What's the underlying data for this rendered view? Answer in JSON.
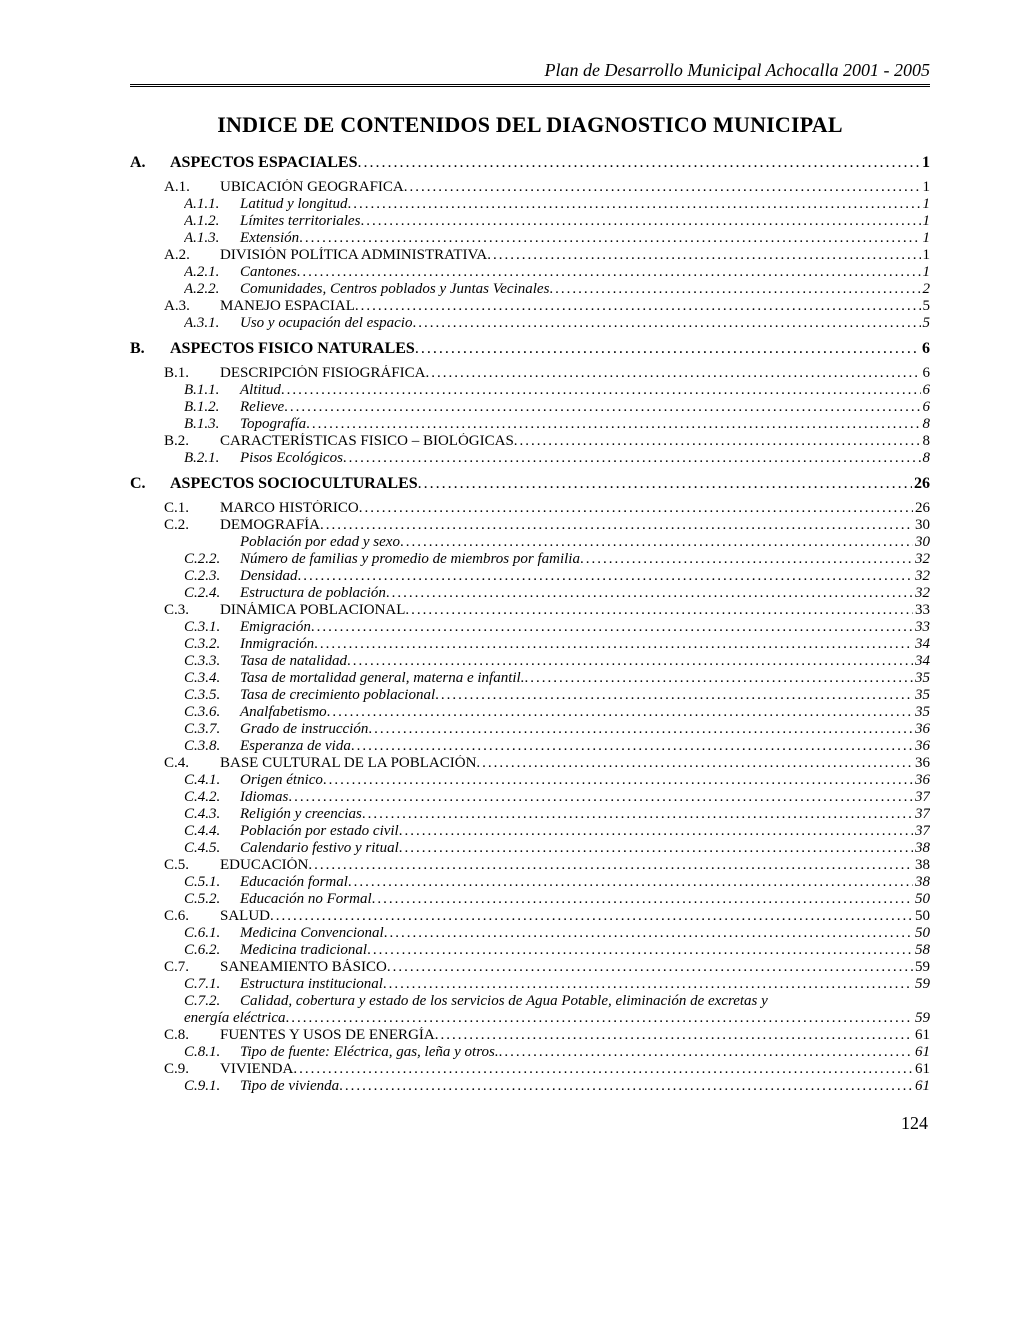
{
  "header": {
    "title": "Plan de Desarrollo Municipal Achocalla 2001 - 2005"
  },
  "mainTitle": "INDICE DE CONTENIDOS DEL DIAGNOSTICO MUNICIPAL",
  "pageNumber": "124",
  "sections": [
    {
      "letter": "A.",
      "title": "ASPECTOS ESPACIALES",
      "page": "1",
      "children": [
        {
          "type": "sub1",
          "num": "A.1.",
          "label": "UBICACIÓN GEOGRAFICA",
          "page": "1"
        },
        {
          "type": "sub2",
          "num": "A.1.1.",
          "label": "Latitud y longitud",
          "page": "1"
        },
        {
          "type": "sub2",
          "num": "A.1.2.",
          "label": "Límites territoriales",
          "page": "1"
        },
        {
          "type": "sub2",
          "num": "A.1.3.",
          "label": "Extensión",
          "page": "1"
        },
        {
          "type": "sub1",
          "num": "A.2.",
          "label": "DIVISIÓN POLÍTICA ADMINISTRATIVA",
          "page": "1"
        },
        {
          "type": "sub2",
          "num": "A.2.1.",
          "label": "Cantones",
          "page": "1"
        },
        {
          "type": "sub2",
          "num": "A.2.2.",
          "label": "Comunidades, Centros poblados y Juntas Vecinales",
          "page": "2"
        },
        {
          "type": "sub1",
          "num": "A.3.",
          "label": "MANEJO ESPACIAL",
          "page": "5"
        },
        {
          "type": "sub2",
          "num": "A.3.1.",
          "label": "Uso y ocupación del espacio",
          "page": "5"
        }
      ]
    },
    {
      "letter": "B.",
      "title": "ASPECTOS FISICO NATURALES",
      "page": "6",
      "children": [
        {
          "type": "sub1",
          "num": "B.1.",
          "label": "DESCRIPCIÓN FISIOGRÁFICA",
          "page": "6"
        },
        {
          "type": "sub2",
          "num": "B.1.1.",
          "label": "Altitud",
          "page": "6"
        },
        {
          "type": "sub2",
          "num": "B.1.2.",
          "label": "Relieve",
          "page": "6"
        },
        {
          "type": "sub2",
          "num": "B.1.3.",
          "label": "Topografía",
          "page": "8"
        },
        {
          "type": "sub1",
          "num": "B.2.",
          "label": "CARACTERÍSTICAS FISICO – BIOLÓGICAS",
          "page": "8"
        },
        {
          "type": "sub2",
          "num": "B.2.1.",
          "label": "Pisos Ecológicos",
          "page": "8"
        }
      ]
    },
    {
      "letter": "C.",
      "title": "ASPECTOS SOCIOCULTURALES",
      "page": "26",
      "children": [
        {
          "type": "sub1",
          "num": "C.1.",
          "label": "MARCO HISTÓRICO",
          "page": "26"
        },
        {
          "type": "sub1",
          "num": "C.2.",
          "label": "DEMOGRAFÍA",
          "page": "30"
        },
        {
          "type": "sub2",
          "num": "",
          "label": "Población por edad y sexo",
          "page": "30"
        },
        {
          "type": "sub2",
          "num": "C.2.2.",
          "label": "Número de familias y promedio de miembros por familia",
          "page": "32"
        },
        {
          "type": "sub2",
          "num": "C.2.3.",
          "label": "Densidad",
          "page": "32"
        },
        {
          "type": "sub2",
          "num": "C.2.4.",
          "label": "Estructura de población",
          "page": "32"
        },
        {
          "type": "sub1",
          "num": "C.3.",
          "label": "DINÁMICA POBLACIONAL",
          "page": "33"
        },
        {
          "type": "sub2",
          "num": "C.3.1.",
          "label": "Emigración",
          "page": "33"
        },
        {
          "type": "sub2",
          "num": "C.3.2.",
          "label": "Inmigración",
          "page": "34"
        },
        {
          "type": "sub2",
          "num": "C.3.3.",
          "label": "Tasa de natalidad",
          "page": "34"
        },
        {
          "type": "sub2",
          "num": "C.3.4.",
          "label": "Tasa de mortalidad general, materna e infantil.",
          "page": "35"
        },
        {
          "type": "sub2",
          "num": "C.3.5.",
          "label": "Tasa de crecimiento poblacional",
          "page": "35"
        },
        {
          "type": "sub2",
          "num": "C.3.6.",
          "label": "Analfabetismo",
          "page": "35"
        },
        {
          "type": "sub2",
          "num": "C.3.7.",
          "label": "Grado de instrucción",
          "page": "36"
        },
        {
          "type": "sub2",
          "num": "C.3.8.",
          "label": "Esperanza  de vida",
          "page": "36"
        },
        {
          "type": "sub1",
          "num": "C.4.",
          "label": "BASE CULTURAL DE LA POBLACIÓN",
          "page": "36"
        },
        {
          "type": "sub2",
          "num": "C.4.1.",
          "label": "Origen étnico",
          "page": "36"
        },
        {
          "type": "sub2",
          "num": "C.4.2.",
          "label": "Idiomas",
          "page": "37"
        },
        {
          "type": "sub2",
          "num": "C.4.3.",
          "label": "Religión y creencias",
          "page": "37"
        },
        {
          "type": "sub2",
          "num": "C.4.4.",
          "label": "Población por estado civil",
          "page": "37"
        },
        {
          "type": "sub2",
          "num": "C.4.5.",
          "label": "Calendario festivo y ritual",
          "page": "38"
        },
        {
          "type": "sub1",
          "num": "C.5.",
          "label": "EDUCACIÓN",
          "page": "38"
        },
        {
          "type": "sub2",
          "num": "C.5.1.",
          "label": "Educación formal",
          "page": "38"
        },
        {
          "type": "sub2",
          "num": "C.5.2.",
          "label": "Educación no Formal",
          "page": "50"
        },
        {
          "type": "sub1",
          "num": "C.6.",
          "label": "SALUD",
          "page": "50"
        },
        {
          "type": "sub2",
          "num": "C.6.1.",
          "label": "Medicina Convencional",
          "page": "50"
        },
        {
          "type": "sub2",
          "num": "C.6.2.",
          "label": "Medicina tradicional",
          "page": "58"
        },
        {
          "type": "sub1",
          "num": "C.7.",
          "label": "SANEAMIENTO BÁSICO",
          "page": "59"
        },
        {
          "type": "sub2",
          "num": "C.7.1.",
          "label": "Estructura institucional",
          "page": "59"
        },
        {
          "type": "sub2wrap",
          "num": "C.7.2.",
          "label": "Calidad, cobertura  y estado de los  servicios de Agua Potable, eliminación de excretas y",
          "label2": "energía eléctrica",
          "page": "59"
        },
        {
          "type": "sub1",
          "num": "C.8.",
          "label": "FUENTES Y USOS DE ENERGÍA",
          "page": "61"
        },
        {
          "type": "sub2",
          "num": "C.8.1.",
          "label": "Tipo de fuente: Eléctrica, gas, leña y otros.",
          "page": "61"
        },
        {
          "type": "sub1",
          "num": "C.9.",
          "label": "VIVIENDA",
          "page": "61"
        },
        {
          "type": "sub2",
          "num": "C.9.1.",
          "label": "Tipo de vivienda",
          "page": "61"
        }
      ]
    }
  ]
}
